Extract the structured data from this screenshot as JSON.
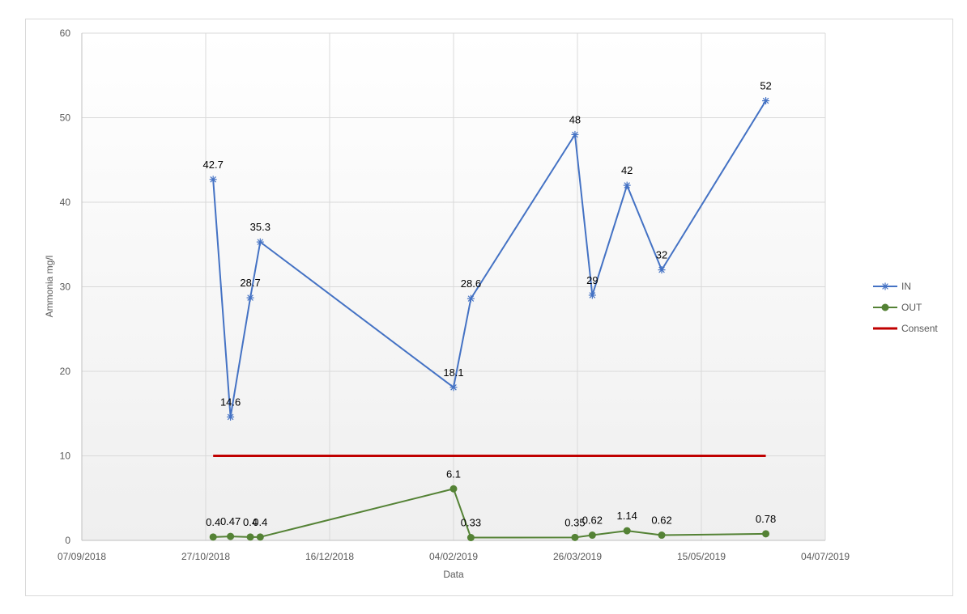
{
  "chart_data": {
    "type": "line",
    "title": "",
    "xlabel": "Data",
    "ylabel": "Ammonia mg/l",
    "ylim": [
      0,
      60
    ],
    "yticks": [
      0,
      10,
      20,
      30,
      40,
      50,
      60
    ],
    "xlim": [
      "2018-09-07",
      "2019-07-04"
    ],
    "xticks": [
      {
        "date": "2018-09-07",
        "label": "07/09/2018"
      },
      {
        "date": "2018-10-27",
        "label": "27/10/2018"
      },
      {
        "date": "2018-12-16",
        "label": "16/12/2018"
      },
      {
        "date": "2019-02-04",
        "label": "04/02/2019"
      },
      {
        "date": "2019-03-26",
        "label": "26/03/2019"
      },
      {
        "date": "2019-05-15",
        "label": "15/05/2019"
      },
      {
        "date": "2019-07-04",
        "label": "04/07/2019"
      }
    ],
    "grid": true,
    "legend_position": "right",
    "series": [
      {
        "name": "IN",
        "color": "#4472c4",
        "marker": "star",
        "points": [
          {
            "x": "2018-10-30",
            "y": 42.7,
            "label": "42.7"
          },
          {
            "x": "2018-11-06",
            "y": 14.6,
            "label": "14.6"
          },
          {
            "x": "2018-11-14",
            "y": 28.7,
            "label": "28.7"
          },
          {
            "x": "2018-11-18",
            "y": 35.3,
            "label": "35.3"
          },
          {
            "x": "2019-02-04",
            "y": 18.1,
            "label": "18.1"
          },
          {
            "x": "2019-02-11",
            "y": 28.6,
            "label": "28.6"
          },
          {
            "x": "2019-03-25",
            "y": 48,
            "label": "48"
          },
          {
            "x": "2019-04-01",
            "y": 29,
            "label": "29"
          },
          {
            "x": "2019-04-15",
            "y": 42,
            "label": "42"
          },
          {
            "x": "2019-04-29",
            "y": 32,
            "label": "32"
          },
          {
            "x": "2019-06-10",
            "y": 52,
            "label": "52"
          }
        ]
      },
      {
        "name": "OUT",
        "color": "#548235",
        "marker": "circle",
        "points": [
          {
            "x": "2018-10-30",
            "y": 0.4,
            "label": "0.4"
          },
          {
            "x": "2018-11-06",
            "y": 0.47,
            "label": "0.47"
          },
          {
            "x": "2018-11-14",
            "y": 0.4,
            "label": "0.4"
          },
          {
            "x": "2018-11-18",
            "y": 0.4,
            "label": "0.4"
          },
          {
            "x": "2019-02-04",
            "y": 6.1,
            "label": "6.1"
          },
          {
            "x": "2019-02-11",
            "y": 0.33,
            "label": "0.33"
          },
          {
            "x": "2019-03-25",
            "y": 0.35,
            "label": "0.35"
          },
          {
            "x": "2019-04-01",
            "y": 0.62,
            "label": "0.62"
          },
          {
            "x": "2019-04-15",
            "y": 1.14,
            "label": "1.14"
          },
          {
            "x": "2019-04-29",
            "y": 0.62,
            "label": "0.62"
          },
          {
            "x": "2019-06-10",
            "y": 0.78,
            "label": "0.78"
          }
        ]
      },
      {
        "name": "Consent",
        "color": "#c00000",
        "marker": "none",
        "points": [
          {
            "x": "2018-10-30",
            "y": 10
          },
          {
            "x": "2019-06-10",
            "y": 10
          }
        ]
      }
    ]
  }
}
